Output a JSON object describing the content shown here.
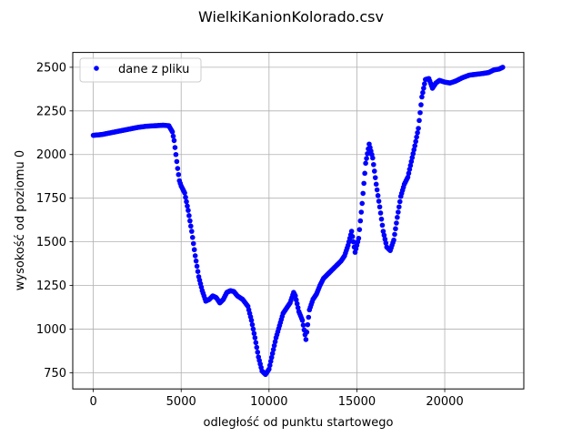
{
  "chart_data": {
    "type": "scatter",
    "title": "WielkiKanionKolorado.csv",
    "xlabel": "odległość od punktu startowego",
    "ylabel": "wysokość od poziomu 0",
    "xlim": [
      -1170,
      24500
    ],
    "ylim": [
      657,
      2585
    ],
    "xticks": [
      0,
      5000,
      10000,
      15000,
      20000
    ],
    "yticks": [
      750,
      1000,
      1250,
      1500,
      1750,
      2000,
      2250,
      2500
    ],
    "grid": true,
    "legend_position": "upper-left",
    "series": [
      {
        "name": "dane z pliku",
        "color": "#0000ff",
        "marker": "circle",
        "keypoints": [
          [
            0,
            2110
          ],
          [
            500,
            2115
          ],
          [
            1000,
            2125
          ],
          [
            1500,
            2135
          ],
          [
            2000,
            2145
          ],
          [
            2500,
            2155
          ],
          [
            3000,
            2162
          ],
          [
            3500,
            2165
          ],
          [
            4000,
            2168
          ],
          [
            4300,
            2165
          ],
          [
            4500,
            2130
          ],
          [
            4600,
            2080
          ],
          [
            4700,
            2000
          ],
          [
            4800,
            1920
          ],
          [
            4900,
            1850
          ],
          [
            5000,
            1820
          ],
          [
            5200,
            1780
          ],
          [
            5400,
            1680
          ],
          [
            5600,
            1560
          ],
          [
            5800,
            1420
          ],
          [
            6000,
            1300
          ],
          [
            6200,
            1220
          ],
          [
            6400,
            1160
          ],
          [
            6600,
            1170
          ],
          [
            6800,
            1190
          ],
          [
            7000,
            1180
          ],
          [
            7200,
            1150
          ],
          [
            7400,
            1170
          ],
          [
            7600,
            1210
          ],
          [
            7800,
            1220
          ],
          [
            8000,
            1215
          ],
          [
            8200,
            1190
          ],
          [
            8500,
            1170
          ],
          [
            8800,
            1130
          ],
          [
            9000,
            1050
          ],
          [
            9200,
            950
          ],
          [
            9400,
            840
          ],
          [
            9600,
            760
          ],
          [
            9800,
            740
          ],
          [
            10000,
            770
          ],
          [
            10200,
            860
          ],
          [
            10400,
            950
          ],
          [
            10600,
            1020
          ],
          [
            10800,
            1090
          ],
          [
            11000,
            1120
          ],
          [
            11200,
            1150
          ],
          [
            11300,
            1180
          ],
          [
            11400,
            1210
          ],
          [
            11500,
            1190
          ],
          [
            11700,
            1100
          ],
          [
            11900,
            1050
          ],
          [
            12100,
            940
          ],
          [
            12300,
            1110
          ],
          [
            12500,
            1170
          ],
          [
            12700,
            1200
          ],
          [
            12900,
            1250
          ],
          [
            13100,
            1290
          ],
          [
            13300,
            1310
          ],
          [
            13500,
            1330
          ],
          [
            13800,
            1360
          ],
          [
            14100,
            1390
          ],
          [
            14300,
            1420
          ],
          [
            14500,
            1480
          ],
          [
            14700,
            1560
          ],
          [
            14900,
            1440
          ],
          [
            15100,
            1520
          ],
          [
            15300,
            1720
          ],
          [
            15500,
            1950
          ],
          [
            15700,
            2060
          ],
          [
            15900,
            1980
          ],
          [
            16100,
            1830
          ],
          [
            16300,
            1700
          ],
          [
            16500,
            1560
          ],
          [
            16700,
            1470
          ],
          [
            16900,
            1450
          ],
          [
            17100,
            1510
          ],
          [
            17300,
            1640
          ],
          [
            17500,
            1760
          ],
          [
            17700,
            1830
          ],
          [
            17900,
            1870
          ],
          [
            18100,
            1960
          ],
          [
            18300,
            2050
          ],
          [
            18500,
            2150
          ],
          [
            18700,
            2330
          ],
          [
            18900,
            2430
          ],
          [
            19100,
            2435
          ],
          [
            19300,
            2380
          ],
          [
            19500,
            2410
          ],
          [
            19700,
            2425
          ],
          [
            20000,
            2415
          ],
          [
            20300,
            2410
          ],
          [
            20600,
            2420
          ],
          [
            21000,
            2440
          ],
          [
            21400,
            2455
          ],
          [
            21800,
            2460
          ],
          [
            22200,
            2465
          ],
          [
            22500,
            2470
          ],
          [
            22800,
            2485
          ],
          [
            23100,
            2490
          ],
          [
            23300,
            2500
          ]
        ]
      }
    ]
  }
}
